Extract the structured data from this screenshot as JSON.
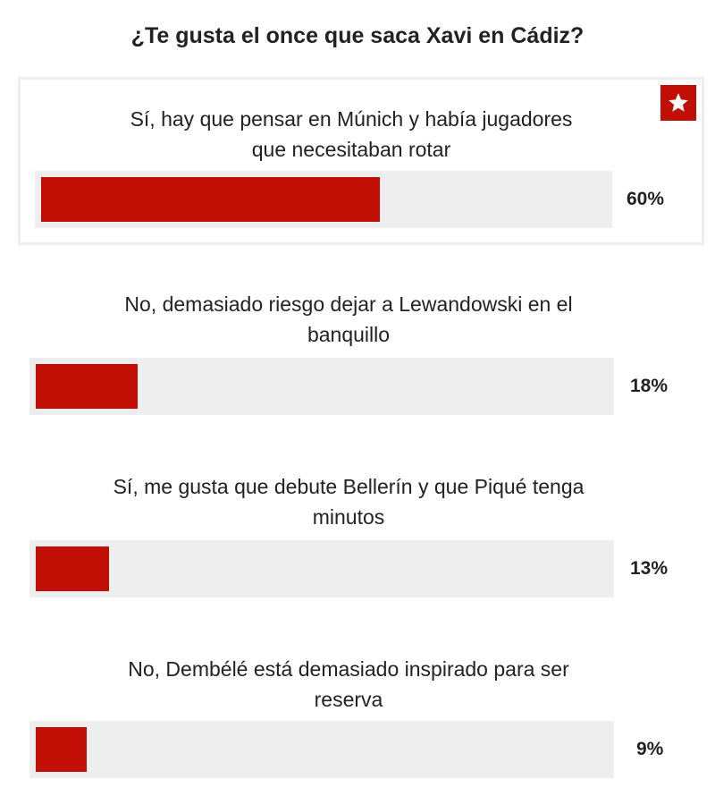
{
  "poll": {
    "title": "¿Te gusta el once que saca Xavi en Cádiz?",
    "options": [
      {
        "label_line1": "Sí, hay que pensar en Múnich y había jugadores",
        "label_line2": "que necesitaban rotar",
        "percent_text": "60%",
        "percent": 60,
        "selected": true,
        "badge_icon": "star-icon"
      },
      {
        "label_line1": "No, demasiado riesgo dejar a Lewandowski en el",
        "label_line2": "banquillo",
        "percent_text": "18%",
        "percent": 18,
        "selected": false
      },
      {
        "label_line1": "Sí, me gusta que debute Bellerín y que Piqué tenga",
        "label_line2": "minutos",
        "percent_text": "13%",
        "percent": 13,
        "selected": false
      },
      {
        "label_line1": "No, Dembélé está demasiado inspirado para ser",
        "label_line2": "reserva",
        "percent_text": "9%",
        "percent": 9,
        "selected": false
      }
    ]
  },
  "colors": {
    "bar_fill": "#c10f06",
    "bar_track": "#eeeeee",
    "text": "#222222"
  }
}
